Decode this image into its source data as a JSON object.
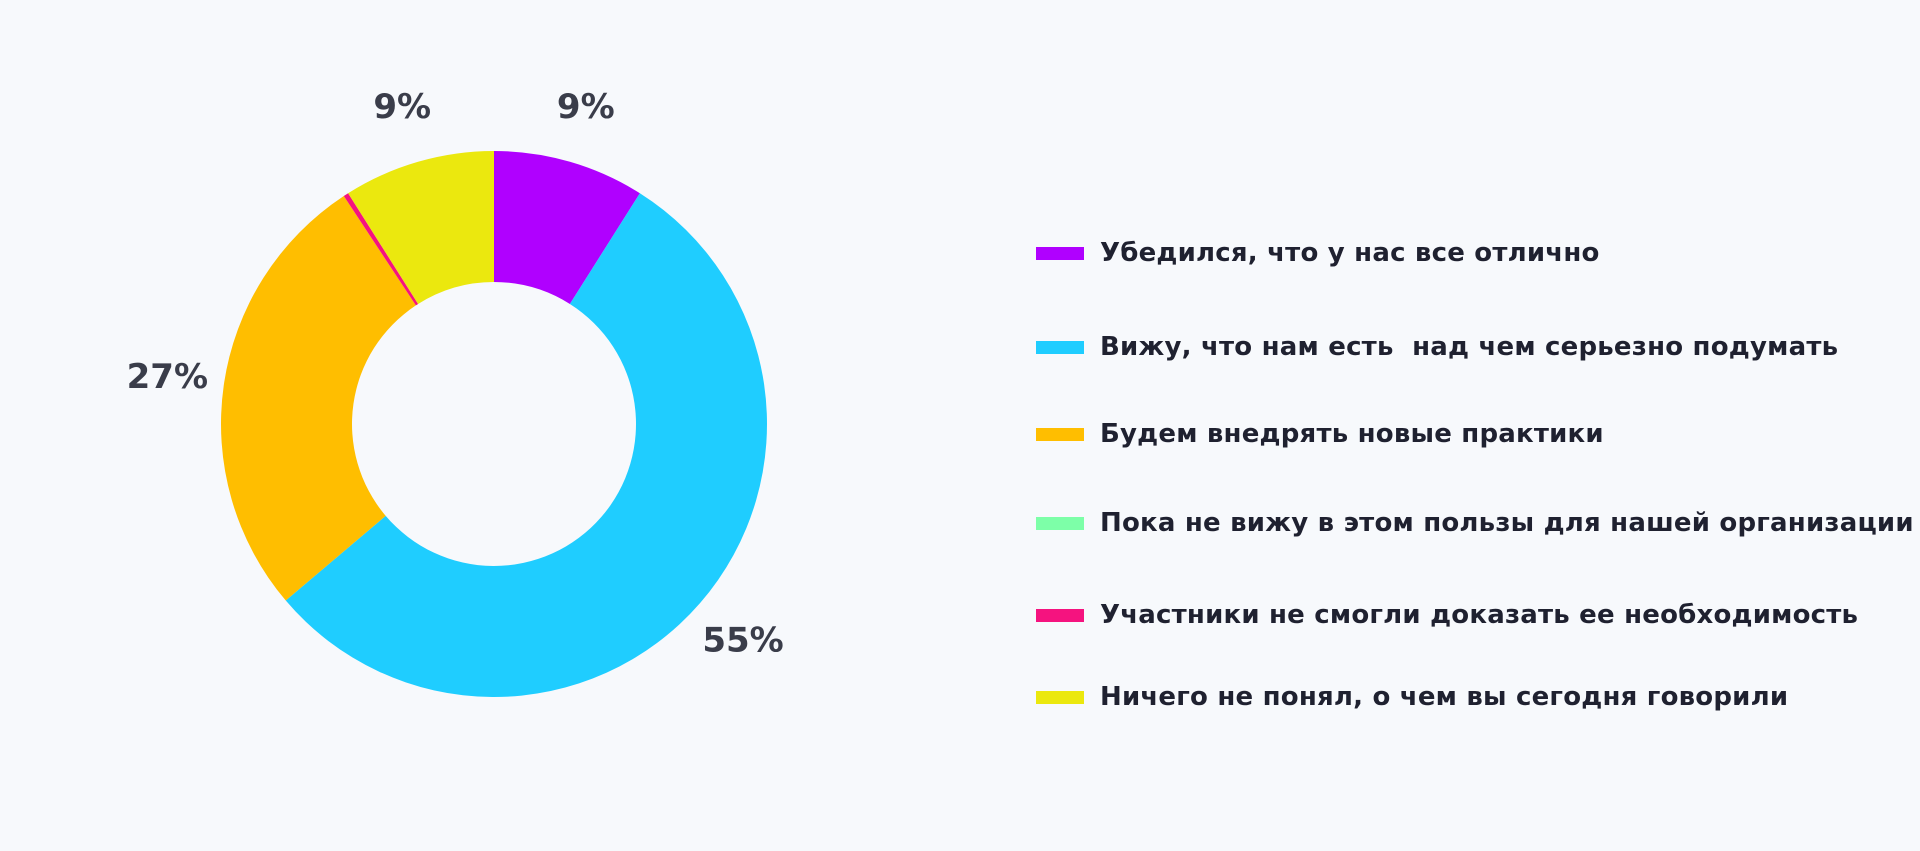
{
  "chart_data": {
    "type": "pie",
    "variant": "donut",
    "title": "",
    "categories": [
      "Убедился, что у нас все отлично",
      "Вижу, что нам есть  над чем серьезно подумать",
      "Будем внедрять новые практики",
      "Пока не вижу в этом пользы для нашей организации",
      "Участники не смогли доказать ее необходимость",
      "Ничего не понял, о чем вы сегодня говорили"
    ],
    "values": [
      9,
      55,
      27,
      0,
      0.3,
      9
    ],
    "value_labels": [
      "9%",
      "55%",
      "27%",
      "",
      "",
      "9%"
    ],
    "colors": [
      "#b000ff",
      "#1fcdff",
      "#ffbe00",
      "#7dffa8",
      "#f5137f",
      "#ebe80e"
    ],
    "legend_position": "right"
  }
}
